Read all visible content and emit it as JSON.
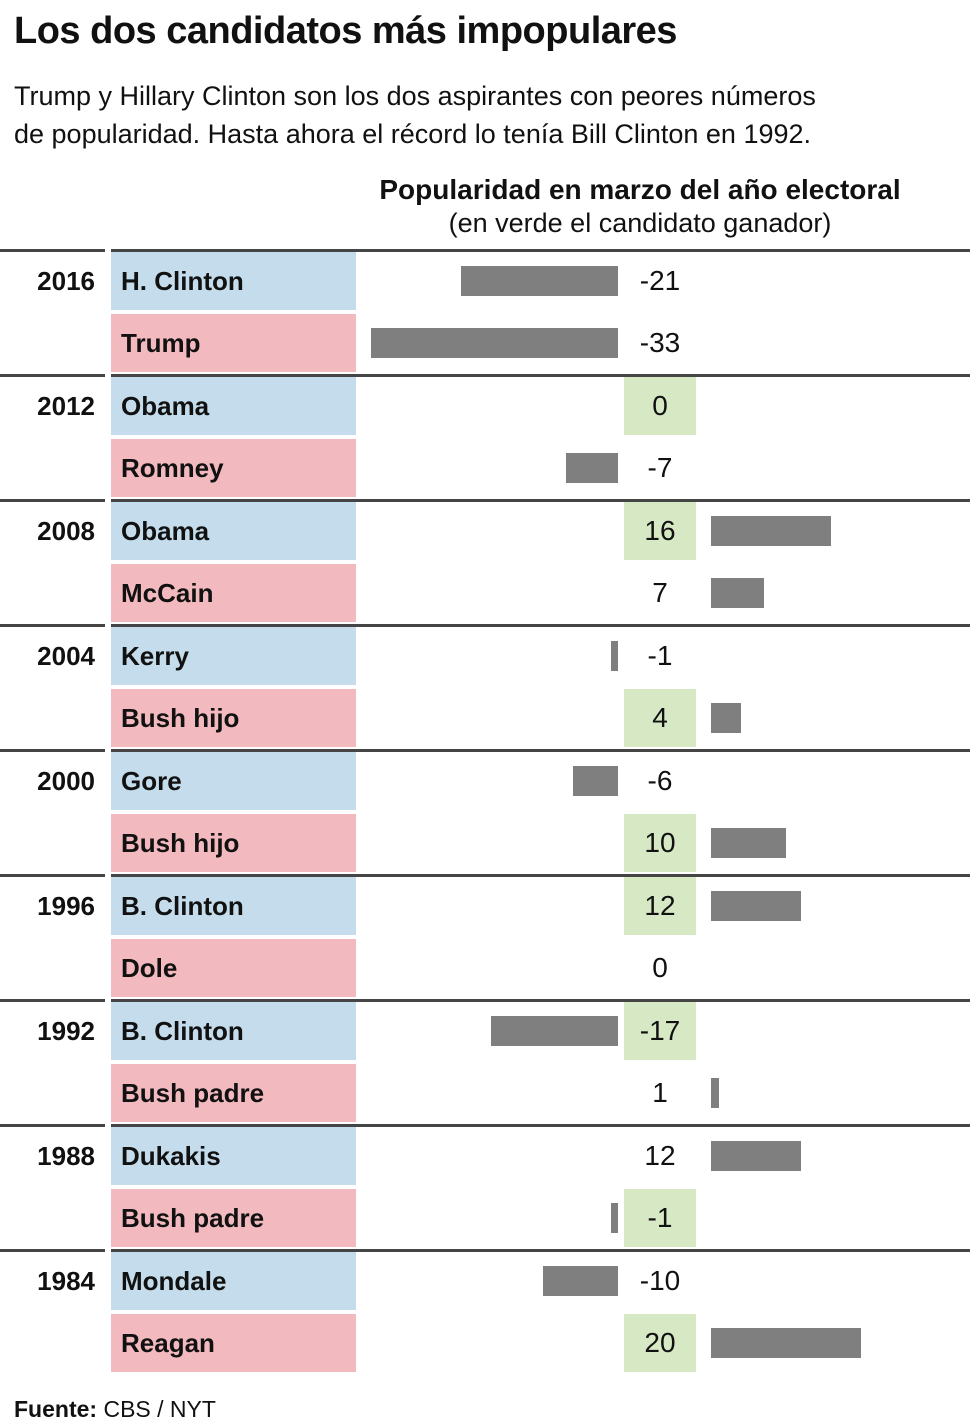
{
  "header": {
    "title": "Los dos candidatos más impopulares",
    "subtitle_lines": [
      "Trump y Hillary Clinton son los dos aspirantes con peores números",
      "de popularidad. Hasta ahora el récord lo tenía Bill Clinton en 1992."
    ]
  },
  "footer": {
    "source_label": "Fuente:",
    "source_value": "CBS / NYT"
  },
  "colors": {
    "democrat_cell_blue": "#C4DCEC",
    "republican_cell_pink": "#F2B9BE",
    "winner_highlight_green": "#D6E8C4",
    "bar_gray": "#7F7F7F",
    "rule_gray": "#454545"
  },
  "chart_data": {
    "type": "bar",
    "orientation": "horizontal",
    "title": "Popularidad en marzo del año electoral",
    "legend": "(en verde el candidato ganador)",
    "value_range": [
      -33,
      20
    ],
    "grid": false,
    "groups": [
      {
        "year": "2016",
        "rows": [
          {
            "candidate": "H. Clinton",
            "party": "dem",
            "value": -21,
            "label": "-21",
            "winner": false
          },
          {
            "candidate": "Trump",
            "party": "rep",
            "value": -33,
            "label": "-33",
            "winner": false
          }
        ]
      },
      {
        "year": "2012",
        "rows": [
          {
            "candidate": "Obama",
            "party": "dem",
            "value": 0,
            "label": "0",
            "winner": true
          },
          {
            "candidate": "Romney",
            "party": "rep",
            "value": -7,
            "label": "-7",
            "winner": false
          }
        ]
      },
      {
        "year": "2008",
        "rows": [
          {
            "candidate": "Obama",
            "party": "dem",
            "value": 16,
            "label": "16",
            "winner": true
          },
          {
            "candidate": "McCain",
            "party": "rep",
            "value": 7,
            "label": "7",
            "winner": false
          }
        ]
      },
      {
        "year": "2004",
        "rows": [
          {
            "candidate": "Kerry",
            "party": "dem",
            "value": -1,
            "label": "-1",
            "winner": false
          },
          {
            "candidate": "Bush hijo",
            "party": "rep",
            "value": 4,
            "label": "4",
            "winner": true
          }
        ]
      },
      {
        "year": "2000",
        "rows": [
          {
            "candidate": "Gore",
            "party": "dem",
            "value": -6,
            "label": "-6",
            "winner": false
          },
          {
            "candidate": "Bush hijo",
            "party": "rep",
            "value": 10,
            "label": "10",
            "winner": true
          }
        ]
      },
      {
        "year": "1996",
        "rows": [
          {
            "candidate": "B. Clinton",
            "party": "dem",
            "value": 12,
            "label": "12",
            "winner": true
          },
          {
            "candidate": "Dole",
            "party": "rep",
            "value": 0,
            "label": "0",
            "winner": false
          }
        ]
      },
      {
        "year": "1992",
        "rows": [
          {
            "candidate": "B. Clinton",
            "party": "dem",
            "value": -17,
            "label": "-17",
            "winner": true
          },
          {
            "candidate": "Bush padre",
            "party": "rep",
            "value": 1,
            "label": "1",
            "winner": false
          }
        ]
      },
      {
        "year": "1988",
        "rows": [
          {
            "candidate": "Dukakis",
            "party": "dem",
            "value": 12,
            "label": "12",
            "winner": false
          },
          {
            "candidate": "Bush padre",
            "party": "rep",
            "value": -1,
            "label": "-1",
            "winner": true
          }
        ]
      },
      {
        "year": "1984",
        "rows": [
          {
            "candidate": "Mondale",
            "party": "dem",
            "value": -10,
            "label": "-10",
            "winner": false
          },
          {
            "candidate": "Reagan",
            "party": "rep",
            "value": 20,
            "label": "20",
            "winner": true
          }
        ]
      }
    ]
  }
}
